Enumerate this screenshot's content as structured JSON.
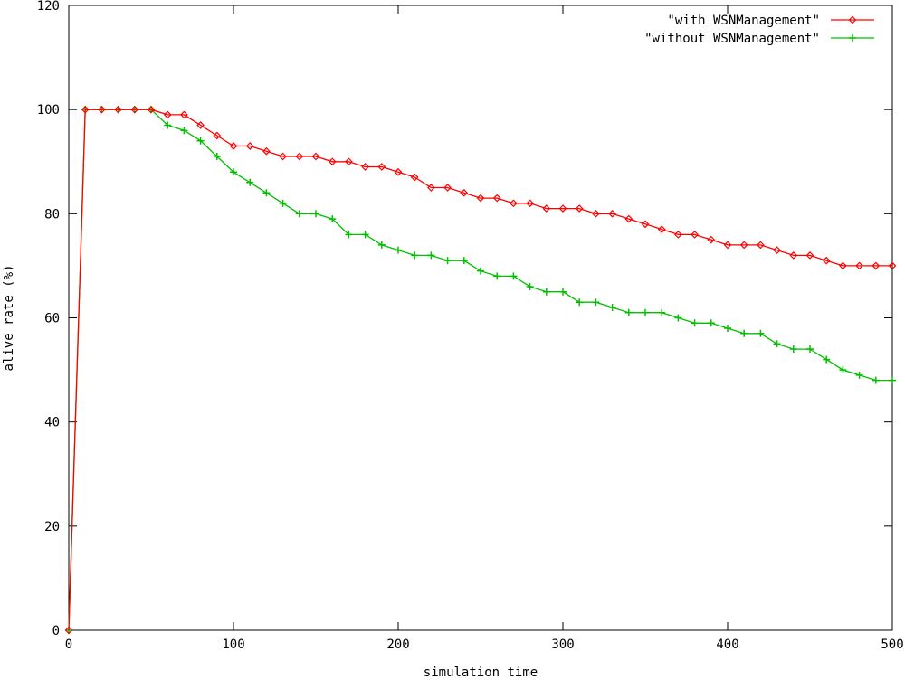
{
  "chart_data": {
    "type": "line",
    "title": "",
    "xlabel": "simulation time",
    "ylabel": "alive rate (%)",
    "xlim": [
      0,
      500
    ],
    "ylim": [
      0,
      120
    ],
    "xticks": [
      0,
      100,
      200,
      300,
      400,
      500
    ],
    "yticks": [
      0,
      20,
      40,
      60,
      80,
      100,
      120
    ],
    "legend_position": "top-right",
    "grid": false,
    "series": [
      {
        "name": "\"with WSNManagement\"",
        "color": "#ff0000",
        "marker": "diamond",
        "x": [
          0,
          10,
          20,
          30,
          40,
          50,
          60,
          70,
          80,
          90,
          100,
          110,
          120,
          130,
          140,
          150,
          160,
          170,
          180,
          190,
          200,
          210,
          220,
          230,
          240,
          250,
          260,
          270,
          280,
          290,
          300,
          310,
          320,
          330,
          340,
          350,
          360,
          370,
          380,
          390,
          400,
          410,
          420,
          430,
          440,
          450,
          460,
          470,
          480,
          490,
          500
        ],
        "y": [
          0,
          100,
          100,
          100,
          100,
          100,
          99,
          99,
          97,
          95,
          93,
          93,
          92,
          91,
          91,
          91,
          90,
          90,
          89,
          89,
          88,
          87,
          85,
          85,
          84,
          83,
          83,
          82,
          82,
          81,
          81,
          81,
          80,
          80,
          79,
          78,
          77,
          76,
          76,
          75,
          74,
          74,
          74,
          73,
          72,
          72,
          71,
          70,
          70,
          70,
          70
        ]
      },
      {
        "name": "\"without WSNManagement\"",
        "color": "#00c000",
        "marker": "plus",
        "x": [
          0,
          10,
          20,
          30,
          40,
          50,
          60,
          70,
          80,
          90,
          100,
          110,
          120,
          130,
          140,
          150,
          160,
          170,
          180,
          190,
          200,
          210,
          220,
          230,
          240,
          250,
          260,
          270,
          280,
          290,
          300,
          310,
          320,
          330,
          340,
          350,
          360,
          370,
          380,
          390,
          400,
          410,
          420,
          430,
          440,
          450,
          460,
          470,
          480,
          490,
          500
        ],
        "y": [
          0,
          100,
          100,
          100,
          100,
          100,
          97,
          96,
          94,
          91,
          88,
          86,
          84,
          82,
          80,
          80,
          79,
          76,
          76,
          74,
          73,
          72,
          72,
          71,
          71,
          69,
          68,
          68,
          66,
          65,
          65,
          63,
          63,
          62,
          61,
          61,
          61,
          60,
          59,
          59,
          58,
          57,
          57,
          55,
          54,
          54,
          52,
          50,
          49,
          48,
          48
        ]
      }
    ]
  }
}
